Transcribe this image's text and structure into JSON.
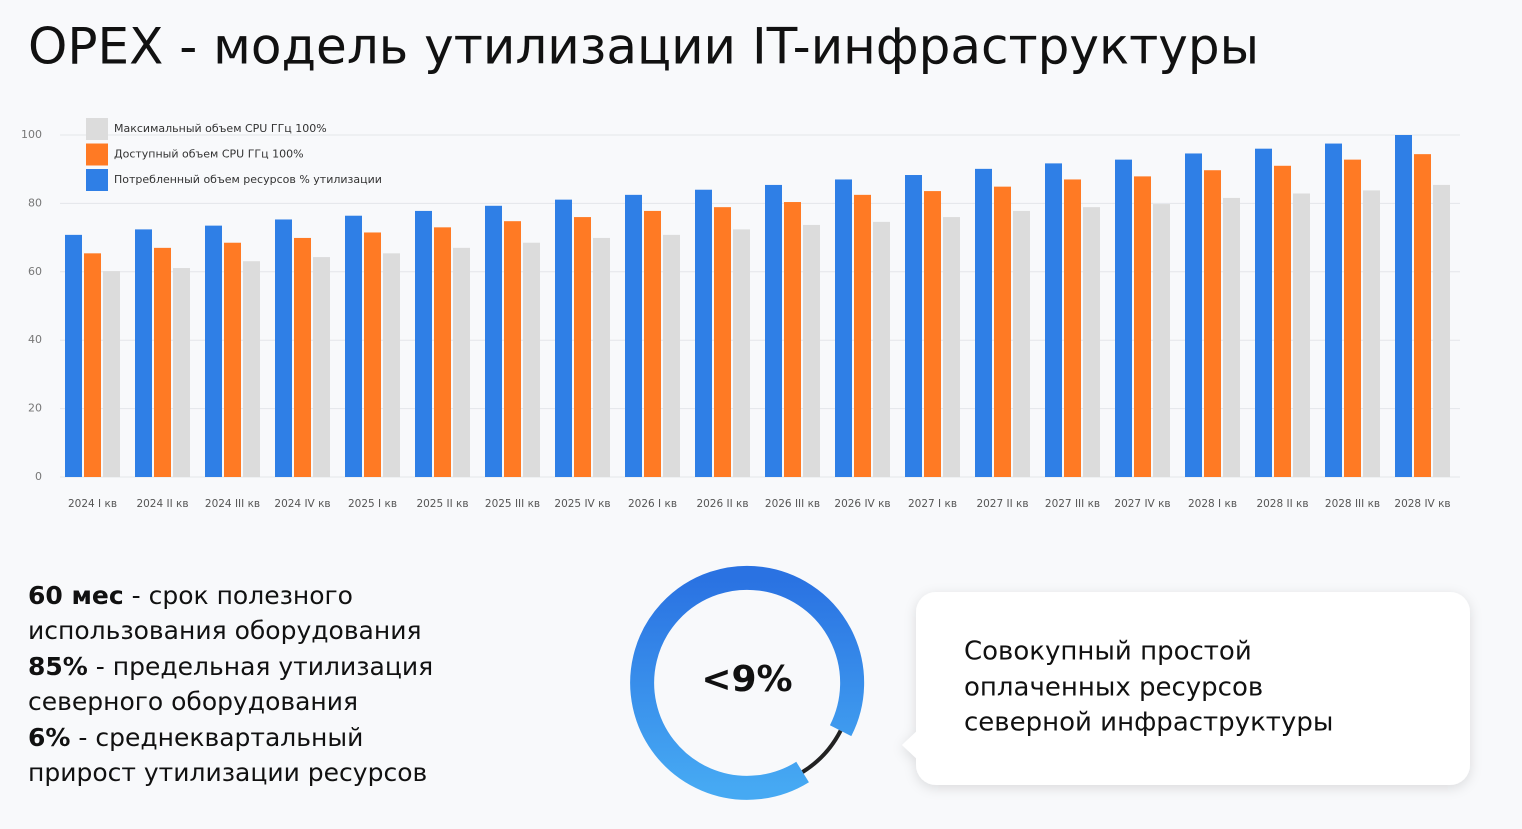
{
  "title": "OPEX - модель утилизации IT-инфраструктуры",
  "chart_data": {
    "type": "bar",
    "categories": [
      "2024 I кв",
      "2024 II кв",
      "2024 III кв",
      "2024 IV кв",
      "2025 I кв",
      "2025 II кв",
      "2025 III кв",
      "2025 IV кв",
      "2026 I кв",
      "2026 II кв",
      "2026 III кв",
      "2026 IV кв",
      "2027 I кв",
      "2027 II кв",
      "2027 III кв",
      "2027 IV кв",
      "2028 I кв",
      "2028 II кв",
      "2028 III кв",
      "2028 IV кв"
    ],
    "series": [
      {
        "name": "Потребленный объем ресурсов % утилизации",
        "color": "#2f7fe6",
        "values": [
          70.8,
          72.4,
          73.5,
          75.3,
          76.4,
          77.8,
          79.3,
          81.1,
          82.5,
          84.0,
          85.4,
          87.0,
          88.3,
          90.1,
          91.7,
          92.8,
          94.6,
          96.0,
          97.5,
          100
        ]
      },
      {
        "name": "Доступный объем CPU ГГц 100%",
        "color": "#ff7a24",
        "values": [
          65.4,
          67.0,
          68.5,
          69.9,
          71.5,
          73.0,
          74.8,
          76.0,
          77.8,
          78.9,
          80.4,
          82.5,
          83.6,
          84.9,
          87.0,
          87.9,
          89.7,
          91.0,
          92.8,
          94.4
        ]
      },
      {
        "name": "Максимальный объем CPU ГГц 100%",
        "color": "#dcdcdc",
        "values": [
          60.2,
          61.1,
          63.1,
          64.3,
          65.4,
          67.0,
          68.5,
          69.9,
          70.8,
          72.4,
          73.7,
          74.6,
          76.0,
          77.8,
          78.9,
          79.8,
          81.6,
          82.9,
          83.8,
          85.4
        ]
      }
    ],
    "ylim": [
      0,
      100
    ],
    "yticks": [
      0,
      20,
      40,
      60,
      80,
      100
    ],
    "grid": true
  },
  "notes": [
    {
      "bold": "60 мес",
      "text": "- срок полезного использования оборудования"
    },
    {
      "bold": "85%",
      "text": "- предельная утилизация северного оборудования"
    },
    {
      "bold": "6%",
      "text": "- среднеквартальный прирост утилизации ресурсов"
    }
  ],
  "donut_label": "<9%",
  "callout": [
    "Совокупный простой",
    "оплаченных ресурсов",
    "северной инфраструктуры"
  ]
}
